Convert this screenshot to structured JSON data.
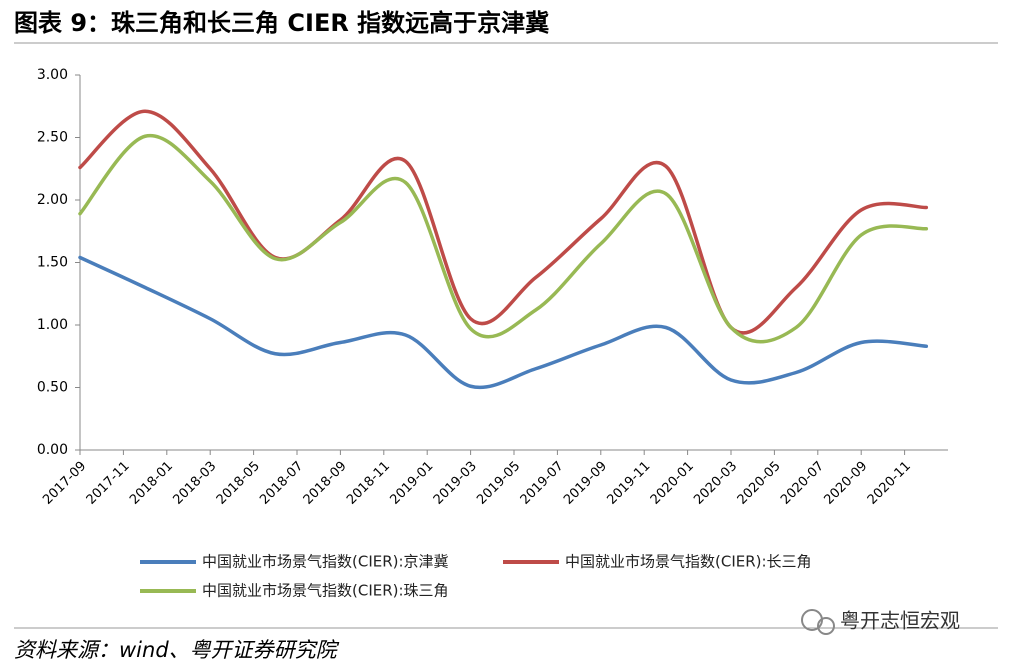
{
  "chart_data": {
    "type": "line",
    "title": "图表 9：珠三角和长三角 CIER 指数远高于京津冀",
    "source": "资料来源：wind、粤开证券研究院",
    "watermark": "粤开志恒宏观",
    "x": [
      "2017-09",
      "2017-12",
      "2018-03",
      "2018-06",
      "2018-09",
      "2018-12",
      "2019-03",
      "2019-06",
      "2019-09",
      "2019-12",
      "2020-03",
      "2020-06",
      "2020-09",
      "2020-12"
    ],
    "series": [
      {
        "name": "中国就业市场景气指数(CIER):京津冀",
        "color": "#4a7ebb",
        "values": [
          1.54,
          1.3,
          1.05,
          0.77,
          0.86,
          0.92,
          0.51,
          0.65,
          0.84,
          0.98,
          0.56,
          0.62,
          0.86,
          0.83
        ]
      },
      {
        "name": "中国就业市场景气指数(CIER):长三角",
        "color": "#be4b48",
        "values": [
          2.26,
          2.71,
          2.25,
          1.54,
          1.84,
          2.31,
          1.05,
          1.38,
          1.85,
          2.27,
          0.98,
          1.3,
          1.92,
          1.94
        ]
      },
      {
        "name": "中国就业市场景气指数(CIER):珠三角",
        "color": "#98b954",
        "values": [
          1.89,
          2.51,
          2.15,
          1.53,
          1.82,
          2.14,
          0.97,
          1.12,
          1.65,
          2.05,
          0.98,
          0.98,
          1.72,
          1.77
        ]
      }
    ],
    "xlim": [
      "2017-09",
      "2021-01"
    ],
    "xticks": [
      "2017-09",
      "2017-11",
      "2018-01",
      "2018-03",
      "2018-05",
      "2018-07",
      "2018-09",
      "2018-11",
      "2019-01",
      "2019-03",
      "2019-05",
      "2019-07",
      "2019-09",
      "2019-11",
      "2020-01",
      "2020-03",
      "2020-05",
      "2020-07",
      "2020-09",
      "2020-11"
    ],
    "ylim": [
      0,
      3
    ],
    "yticks": [
      {
        "value": 0,
        "label": "0.00"
      },
      {
        "value": 0.5,
        "label": "0.50"
      },
      {
        "value": 1,
        "label": "1.00"
      },
      {
        "value": 1.5,
        "label": "1.50"
      },
      {
        "value": 2,
        "label": "2.00"
      },
      {
        "value": 2.5,
        "label": "2.50"
      },
      {
        "value": 3,
        "label": "3.00"
      }
    ]
  }
}
